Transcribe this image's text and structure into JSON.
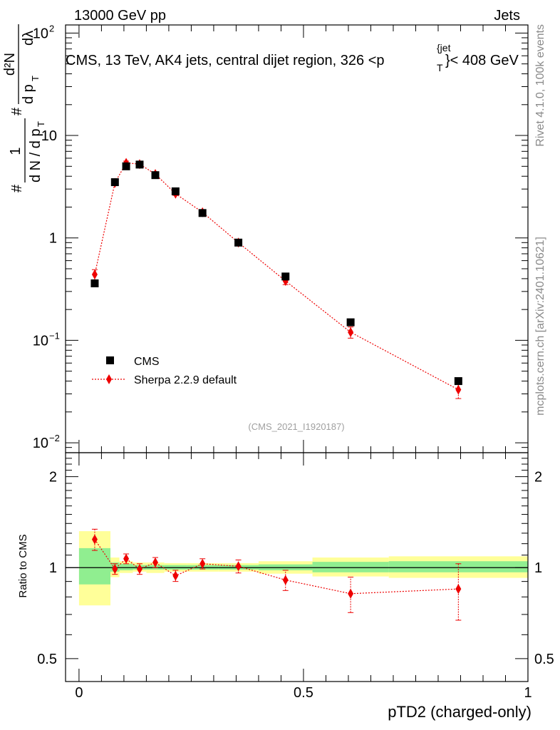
{
  "header": {
    "left": "13000 GeV pp",
    "right": "Jets"
  },
  "side_labels": {
    "top": "Rivet 4.1.0,  100k events",
    "bottom": "mcplots.cern.ch [arXiv:2401.10621]"
  },
  "colors": {
    "data": "#000000",
    "mc": "#ee0000",
    "band_inner": "#90ee90",
    "band_outer": "#ffff99"
  },
  "chart_data": [
    {
      "type": "scatter",
      "title": "CMS, 13 TeV, AK4 jets, central dijet region, 326 <p_T^{jet}< 408 GeV",
      "title_parts": {
        "main": "CMS, 13 TeV, AK4 jets, central dijet region, 326 <p",
        "sub": "T",
        "sup": "{jet",
        "tail": "}< 408 GeV"
      },
      "watermark": "(CMS_2021_I1920187)",
      "ylabel": "# 1/(d N / d p_T) # d^2N/(d p_T d λ)",
      "ylabel_parts": {
        "frac1_num": "1",
        "frac1_den": "d N / d p",
        "frac2_num": "d²N",
        "frac2_den": "d p",
        "sub": "T",
        "lambda": "dλ",
        "hash": "#"
      },
      "yscale": "log",
      "ylim": [
        0.008,
        120
      ],
      "xlim": [
        -0.03,
        1.0
      ],
      "ytick_labels": [
        {
          "value": 0.01,
          "base": "10",
          "exp": "−2"
        },
        {
          "value": 0.1,
          "base": "10",
          "exp": "−1"
        },
        {
          "value": 1,
          "base": "1",
          "exp": ""
        },
        {
          "value": 10,
          "base": "10",
          "exp": ""
        },
        {
          "value": 100,
          "base": "10",
          "exp": "2"
        }
      ],
      "legend": {
        "placement": "bottom-left",
        "entries": [
          "CMS",
          "Sherpa 2.2.9 default"
        ]
      },
      "series": [
        {
          "name": "CMS",
          "marker": "square",
          "x": [
            0.035,
            0.08,
            0.105,
            0.135,
            0.17,
            0.215,
            0.275,
            0.355,
            0.46,
            0.605,
            0.845
          ],
          "y": [
            0.36,
            3.5,
            5.0,
            5.2,
            4.1,
            2.85,
            1.75,
            0.9,
            0.42,
            0.15,
            0.04
          ],
          "yerr": [
            0.015,
            0.08,
            0.1,
            0.1,
            0.08,
            0.06,
            0.04,
            0.02,
            0.01,
            0.004,
            0.002
          ]
        },
        {
          "name": "Sherpa 2.2.9 default",
          "marker": "diamond",
          "line": "dotted",
          "x": [
            0.035,
            0.08,
            0.105,
            0.135,
            0.17,
            0.215,
            0.275,
            0.355,
            0.46,
            0.605,
            0.845
          ],
          "y": [
            0.44,
            3.45,
            5.4,
            5.25,
            4.2,
            2.7,
            1.78,
            0.9,
            0.38,
            0.12,
            0.033
          ],
          "yerr": [
            0.05,
            0.15,
            0.22,
            0.2,
            0.15,
            0.1,
            0.06,
            0.03,
            0.03,
            0.015,
            0.006
          ]
        }
      ]
    },
    {
      "type": "scatter",
      "title": "",
      "ylabel": "Ratio to CMS",
      "xlabel": "pTD2 (charged-only)",
      "yscale": "log",
      "ylim": [
        0.42,
        2.4
      ],
      "xlim": [
        -0.03,
        1.0
      ],
      "xtick_labels": [
        "0",
        "0.5",
        "1"
      ],
      "ytick_labels": [
        "0.5",
        "1",
        "2"
      ],
      "bands": [
        {
          "x0": 0.0,
          "x1": 0.07,
          "inner": [
            0.88,
            1.16
          ],
          "outer": [
            0.75,
            1.32
          ]
        },
        {
          "x0": 0.07,
          "x1": 0.09,
          "inner": [
            0.97,
            1.04
          ],
          "outer": [
            0.93,
            1.08
          ]
        },
        {
          "x0": 0.09,
          "x1": 0.12,
          "inner": [
            0.98,
            1.03
          ],
          "outer": [
            0.96,
            1.05
          ]
        },
        {
          "x0": 0.12,
          "x1": 0.15,
          "inner": [
            0.985,
            1.02
          ],
          "outer": [
            0.97,
            1.04
          ]
        },
        {
          "x0": 0.15,
          "x1": 0.19,
          "inner": [
            0.985,
            1.02
          ],
          "outer": [
            0.96,
            1.04
          ]
        },
        {
          "x0": 0.19,
          "x1": 0.24,
          "inner": [
            0.985,
            1.02
          ],
          "outer": [
            0.97,
            1.035
          ]
        },
        {
          "x0": 0.24,
          "x1": 0.31,
          "inner": [
            0.985,
            1.02
          ],
          "outer": [
            0.97,
            1.035
          ]
        },
        {
          "x0": 0.31,
          "x1": 0.4,
          "inner": [
            0.985,
            1.02
          ],
          "outer": [
            0.97,
            1.035
          ]
        },
        {
          "x0": 0.4,
          "x1": 0.52,
          "inner": [
            0.98,
            1.025
          ],
          "outer": [
            0.955,
            1.05
          ]
        },
        {
          "x0": 0.52,
          "x1": 0.69,
          "inner": [
            0.965,
            1.045
          ],
          "outer": [
            0.935,
            1.08
          ]
        },
        {
          "x0": 0.69,
          "x1": 1.0,
          "inner": [
            0.965,
            1.05
          ],
          "outer": [
            0.925,
            1.09
          ]
        }
      ],
      "series": [
        {
          "name": "Sherpa 2.2.9 default",
          "marker": "diamond",
          "line": "dotted",
          "x": [
            0.035,
            0.08,
            0.105,
            0.135,
            0.17,
            0.215,
            0.275,
            0.355,
            0.46,
            0.605,
            0.845
          ],
          "y": [
            1.24,
            0.99,
            1.07,
            0.99,
            1.04,
            0.94,
            1.03,
            1.01,
            0.91,
            0.82,
            0.85
          ],
          "yerr": [
            0.1,
            0.04,
            0.04,
            0.04,
            0.04,
            0.04,
            0.04,
            0.05,
            0.07,
            0.11,
            0.18
          ]
        }
      ]
    }
  ]
}
